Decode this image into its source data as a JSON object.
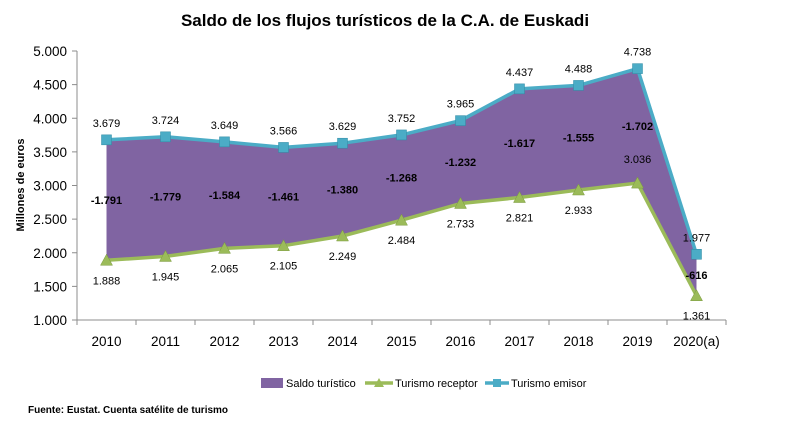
{
  "chart_data": {
    "type": "area",
    "title": "Saldo de los flujos turísticos de la C.A. de Euskadi",
    "ylabel": "Millones de euros",
    "xlabel": "",
    "ylim": [
      1000,
      5000
    ],
    "y_ticks": [
      "1.000",
      "1.500",
      "2.000",
      "2.500",
      "3.000",
      "3.500",
      "4.000",
      "4.500",
      "5.000"
    ],
    "y_tick_values": [
      1000,
      1500,
      2000,
      2500,
      3000,
      3500,
      4000,
      4500,
      5000
    ],
    "categories": [
      "2010",
      "2011",
      "2012",
      "2013",
      "2014",
      "2015",
      "2016",
      "2017",
      "2018",
      "2019",
      "2020(a)"
    ],
    "grid": false,
    "legend_position": "bottom",
    "series": [
      {
        "name": "Saldo turístico",
        "color": "#8064a2",
        "labels": [
          "-1.791",
          "-1.779",
          "-1.584",
          "-1.461",
          "-1.380",
          "-1.268",
          "-1.232",
          "-1.617",
          "-1.555",
          "-1.702",
          "-616"
        ],
        "values": [
          -1791,
          -1779,
          -1584,
          -1461,
          -1380,
          -1268,
          -1232,
          -1617,
          -1555,
          -1702,
          -616
        ]
      },
      {
        "name": "Turismo receptor",
        "color": "#9bbb59",
        "marker": "triangle",
        "labels": [
          "1.888",
          "1.945",
          "2.065",
          "2.105",
          "2.249",
          "2.484",
          "2.733",
          "2.821",
          "2.933",
          "3.036",
          "1.361"
        ],
        "values": [
          1888,
          1945,
          2065,
          2105,
          2249,
          2484,
          2733,
          2821,
          2933,
          3036,
          1361
        ]
      },
      {
        "name": "Turismo emisor",
        "color": "#4bacc6",
        "marker": "square",
        "labels": [
          "3.679",
          "3.724",
          "3.649",
          "3.566",
          "3.629",
          "3.752",
          "3.965",
          "4.437",
          "4.488",
          "4.738",
          "1.977"
        ],
        "values": [
          3679,
          3724,
          3649,
          3566,
          3629,
          3752,
          3965,
          4437,
          4488,
          4738,
          1977
        ]
      }
    ]
  },
  "source": "Fuente: Eustat. Cuenta satélite de turismo"
}
